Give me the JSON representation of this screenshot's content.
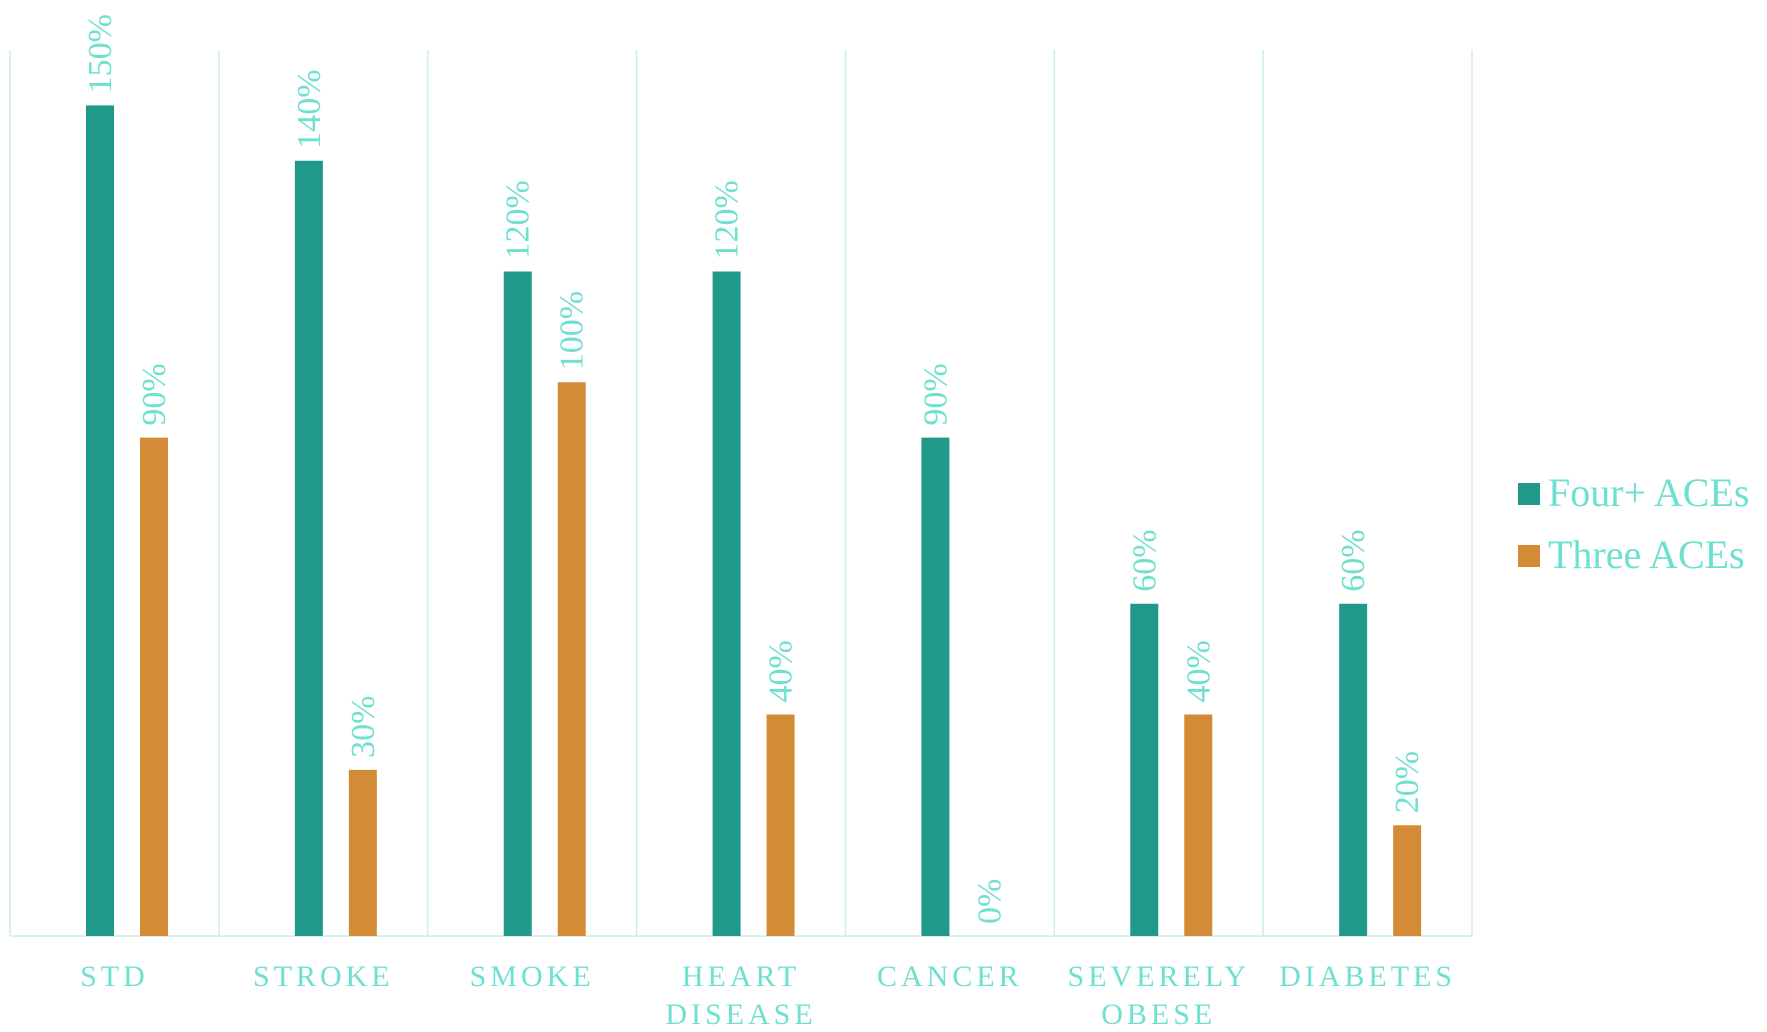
{
  "chart_data": {
    "type": "bar",
    "categories": [
      [
        "STD"
      ],
      [
        "STROKE"
      ],
      [
        "SMOKE"
      ],
      [
        "HEART",
        "DISEASE"
      ],
      [
        "CANCER"
      ],
      [
        "SEVERELY",
        "OBESE"
      ],
      [
        "DIABETES"
      ]
    ],
    "series": [
      {
        "name": "Four+ ACEs",
        "color": "#20998a",
        "values": [
          150,
          140,
          120,
          120,
          90,
          60,
          60
        ],
        "labels": [
          "150%",
          "140%",
          "120%",
          "120%",
          "90%",
          "60%",
          "60%"
        ]
      },
      {
        "name": "Three ACEs",
        "color": "#d38c35",
        "values": [
          90,
          30,
          100,
          40,
          0,
          40,
          20
        ],
        "labels": [
          "90%",
          "30%",
          "100%",
          "40%",
          "0%",
          "40%",
          "20%"
        ]
      }
    ],
    "ylim": [
      0,
      160
    ],
    "grid": "vertical category separators",
    "legend_position": "right",
    "text_color": "#6ee0cf",
    "grid_color": "#cdeee9"
  }
}
